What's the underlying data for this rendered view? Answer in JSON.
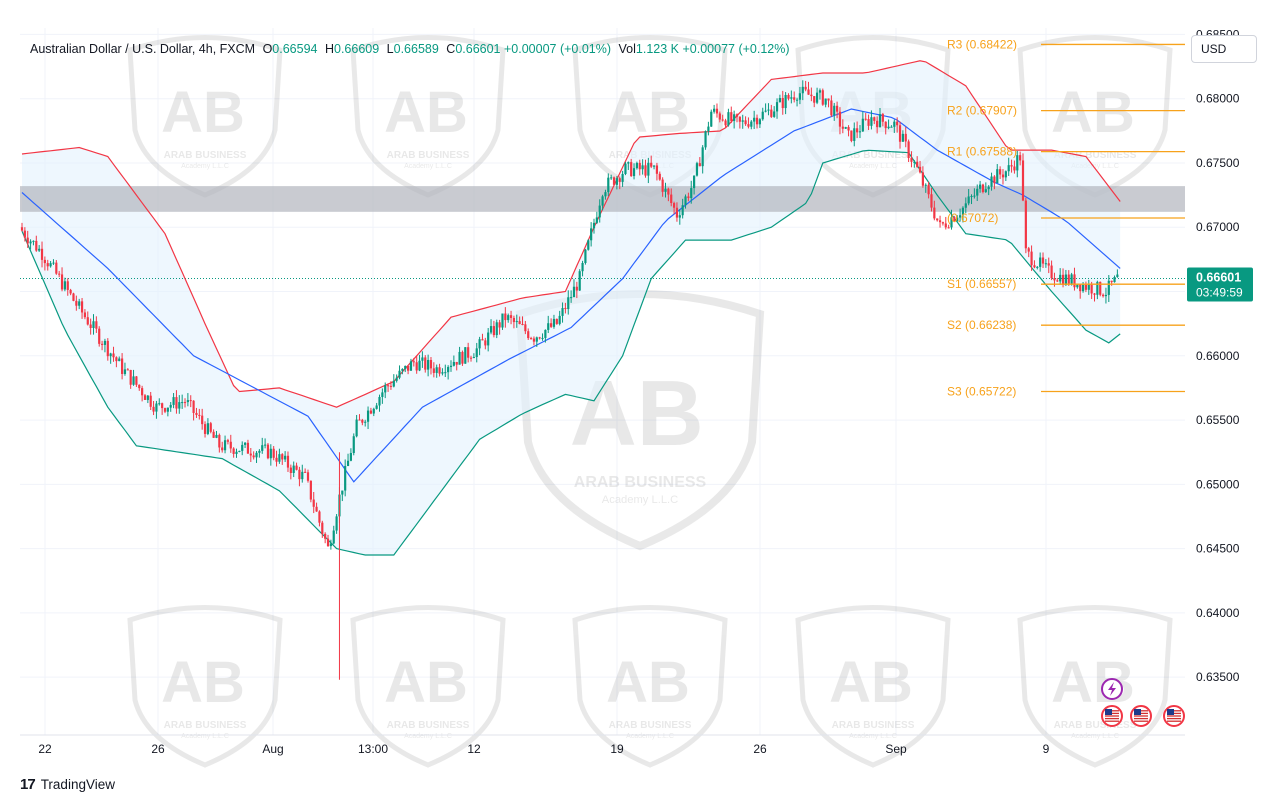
{
  "header": {
    "symbol": "Australian Dollar / U.S. Dollar, 4h, FXCM",
    "open_label": "O",
    "open": "0.66594",
    "high_label": "H",
    "high": "0.66609",
    "low_label": "L",
    "low": "0.66589",
    "close_label": "C",
    "close": "0.66601",
    "change": "+0.00007 (+0.01%)",
    "volume_label": "Vol",
    "volume": "1.123 K",
    "vol_change": "+0.00077 (+0.12%)"
  },
  "currency_button": "USD",
  "brand": "TradingView",
  "brand_mark": "17",
  "watermark_text": "ARAB BUSINESS",
  "watermark_sub": "Academy L.L.C",
  "price_tag": {
    "price": "0.66601",
    "countdown": "03:49:59",
    "color": "#089981"
  },
  "colors": {
    "up": "#089981",
    "down": "#f23645",
    "basis": "#2962ff",
    "upper_band": "#f23645",
    "lower_band": "#089981",
    "band_fill": "#e3f2fd",
    "pivot": "#f7a21b",
    "zone": "#b2b5be"
  },
  "icons": [
    "lightning-icon",
    "us-flag-icon",
    "us-flag-icon",
    "us-flag-icon"
  ],
  "chart_data": {
    "type": "candlestick",
    "title": "Australian Dollar / U.S. Dollar, 4h, FXCM",
    "y_axis": {
      "range": [
        0.6305,
        0.6855
      ],
      "ticks": [
        "0.68500",
        "0.68000",
        "0.67500",
        "0.67000",
        "0.66500",
        "0.66000",
        "0.65500",
        "0.65000",
        "0.64500",
        "0.64000",
        "0.63500"
      ]
    },
    "x_axis": {
      "ticks": [
        "22",
        "26",
        "Aug",
        "13:00",
        "12",
        "19",
        "26",
        "Sep",
        "9"
      ]
    },
    "pivot_levels": [
      {
        "label": "R3",
        "value": "0.68422"
      },
      {
        "label": "R2",
        "value": "0.67907"
      },
      {
        "label": "R1",
        "value": "0.67588"
      },
      {
        "label": "P",
        "value": "0.67072"
      },
      {
        "label": "S1",
        "value": "0.66557"
      },
      {
        "label": "S2",
        "value": "0.66238"
      },
      {
        "label": "S3",
        "value": "0.65722"
      }
    ],
    "resistance_zone": [
      0.6712,
      0.6732
    ],
    "last_price": 0.66601,
    "series": [
      {
        "name": "Price close path (approx.)",
        "anchors": [
          [
            0,
            0.67
          ],
          [
            8,
            0.668
          ],
          [
            20,
            0.664
          ],
          [
            36,
            0.659
          ],
          [
            48,
            0.656
          ],
          [
            58,
            0.6565
          ],
          [
            70,
            0.653
          ],
          [
            88,
            0.6525
          ],
          [
            100,
            0.6505
          ],
          [
            108,
            0.645
          ],
          [
            112,
            0.649
          ],
          [
            118,
            0.6545
          ],
          [
            128,
            0.6575
          ],
          [
            138,
            0.6595
          ],
          [
            146,
            0.659
          ],
          [
            160,
            0.6605
          ],
          [
            170,
            0.663
          ],
          [
            180,
            0.6615
          ],
          [
            188,
            0.6625
          ],
          [
            196,
            0.666
          ],
          [
            204,
            0.673
          ],
          [
            212,
            0.6745
          ],
          [
            222,
            0.6745
          ],
          [
            230,
            0.671
          ],
          [
            236,
            0.6735
          ],
          [
            242,
            0.679
          ],
          [
            252,
            0.678
          ],
          [
            262,
            0.679
          ],
          [
            272,
            0.6805
          ],
          [
            282,
            0.68
          ],
          [
            290,
            0.677
          ],
          [
            298,
            0.6785
          ],
          [
            306,
            0.678
          ],
          [
            314,
            0.6745
          ],
          [
            322,
            0.67
          ],
          [
            330,
            0.6715
          ],
          [
            338,
            0.6735
          ],
          [
            346,
            0.6745
          ],
          [
            350,
            0.6755
          ],
          [
            352,
            0.668
          ],
          [
            360,
            0.6665
          ],
          [
            372,
            0.6655
          ],
          [
            380,
            0.665
          ],
          [
            384,
            0.666
          ]
        ]
      },
      {
        "name": "Bollinger basis (approx.)",
        "anchors": [
          [
            0,
            0.6727
          ],
          [
            30,
            0.6668
          ],
          [
            60,
            0.66
          ],
          [
            100,
            0.6553
          ],
          [
            116,
            0.6502
          ],
          [
            140,
            0.656
          ],
          [
            170,
            0.6597
          ],
          [
            192,
            0.6622
          ],
          [
            210,
            0.666
          ],
          [
            225,
            0.6705
          ],
          [
            245,
            0.674
          ],
          [
            270,
            0.6775
          ],
          [
            290,
            0.6792
          ],
          [
            305,
            0.6785
          ],
          [
            320,
            0.676
          ],
          [
            340,
            0.6735
          ],
          [
            350,
            0.6725
          ],
          [
            365,
            0.6705
          ],
          [
            384,
            0.6668
          ]
        ]
      },
      {
        "name": "Bollinger upper (approx.)",
        "anchors": [
          [
            0,
            0.6757
          ],
          [
            20,
            0.6762
          ],
          [
            30,
            0.6755
          ],
          [
            50,
            0.6695
          ],
          [
            65,
            0.662
          ],
          [
            75,
            0.6572
          ],
          [
            90,
            0.6575
          ],
          [
            110,
            0.656
          ],
          [
            130,
            0.658
          ],
          [
            150,
            0.663
          ],
          [
            175,
            0.6645
          ],
          [
            190,
            0.665
          ],
          [
            200,
            0.67
          ],
          [
            215,
            0.677
          ],
          [
            230,
            0.6773
          ],
          [
            245,
            0.6775
          ],
          [
            262,
            0.6815
          ],
          [
            280,
            0.682
          ],
          [
            295,
            0.682
          ],
          [
            315,
            0.683
          ],
          [
            330,
            0.681
          ],
          [
            345,
            0.676
          ],
          [
            360,
            0.676
          ],
          [
            372,
            0.6755
          ],
          [
            384,
            0.672
          ]
        ]
      },
      {
        "name": "Bollinger lower (approx.)",
        "anchors": [
          [
            0,
            0.6697
          ],
          [
            15,
            0.662
          ],
          [
            30,
            0.656
          ],
          [
            40,
            0.653
          ],
          [
            55,
            0.6525
          ],
          [
            70,
            0.652
          ],
          [
            90,
            0.6495
          ],
          [
            110,
            0.645
          ],
          [
            120,
            0.6445
          ],
          [
            130,
            0.6445
          ],
          [
            145,
            0.649
          ],
          [
            160,
            0.6535
          ],
          [
            175,
            0.6555
          ],
          [
            190,
            0.657
          ],
          [
            200,
            0.6565
          ],
          [
            210,
            0.66
          ],
          [
            220,
            0.666
          ],
          [
            232,
            0.669
          ],
          [
            248,
            0.669
          ],
          [
            262,
            0.67
          ],
          [
            275,
            0.672
          ],
          [
            280,
            0.675
          ],
          [
            295,
            0.676
          ],
          [
            310,
            0.6758
          ],
          [
            320,
            0.6725
          ],
          [
            330,
            0.6695
          ],
          [
            345,
            0.669
          ],
          [
            360,
            0.665
          ],
          [
            372,
            0.662
          ],
          [
            380,
            0.661
          ],
          [
            384,
            0.6617
          ]
        ]
      }
    ]
  }
}
